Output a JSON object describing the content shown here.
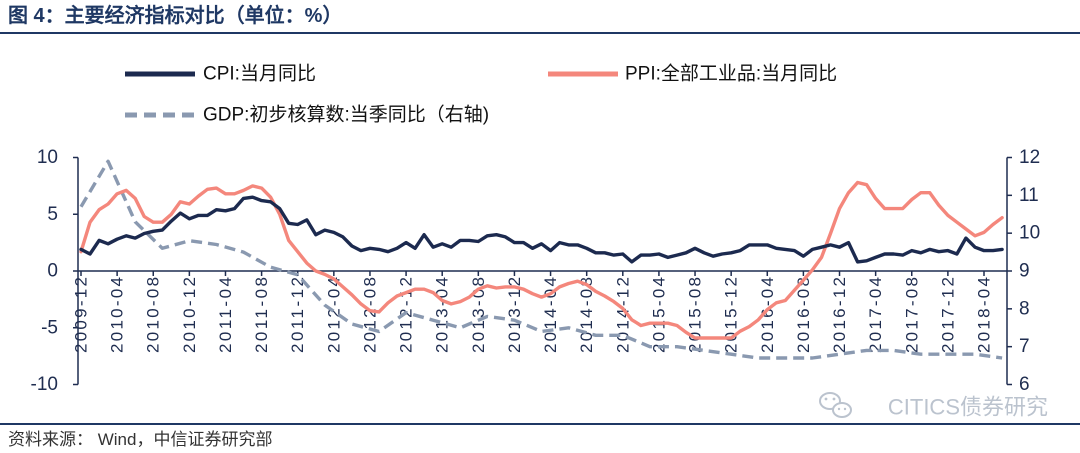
{
  "chart_data": {
    "type": "line",
    "title": "图 4：主要经济指标对比（单位：%）",
    "legend": "top",
    "grid": false,
    "x": [
      "2009-12",
      "2010-01",
      "2010-02",
      "2010-03",
      "2010-04",
      "2010-05",
      "2010-06",
      "2010-07",
      "2010-08",
      "2010-09",
      "2010-10",
      "2010-11",
      "2010-12",
      "2011-01",
      "2011-02",
      "2011-03",
      "2011-04",
      "2011-05",
      "2011-06",
      "2011-07",
      "2011-08",
      "2011-09",
      "2011-10",
      "2011-11",
      "2011-12",
      "2012-01",
      "2012-02",
      "2012-03",
      "2012-04",
      "2012-05",
      "2012-06",
      "2012-07",
      "2012-08",
      "2012-09",
      "2012-10",
      "2012-11",
      "2012-12",
      "2013-01",
      "2013-02",
      "2013-03",
      "2013-04",
      "2013-05",
      "2013-06",
      "2013-07",
      "2013-08",
      "2013-09",
      "2013-10",
      "2013-11",
      "2013-12",
      "2014-01",
      "2014-02",
      "2014-03",
      "2014-04",
      "2014-05",
      "2014-06",
      "2014-07",
      "2014-08",
      "2014-09",
      "2014-10",
      "2014-11",
      "2014-12",
      "2015-01",
      "2015-02",
      "2015-03",
      "2015-04",
      "2015-05",
      "2015-06",
      "2015-07",
      "2015-08",
      "2015-09",
      "2015-10",
      "2015-11",
      "2015-12",
      "2016-01",
      "2016-02",
      "2016-03",
      "2016-04",
      "2016-05",
      "2016-06",
      "2016-07",
      "2016-08",
      "2016-09",
      "2016-10",
      "2016-11",
      "2016-12",
      "2017-01",
      "2017-02",
      "2017-03",
      "2017-04",
      "2017-05",
      "2017-06",
      "2017-07",
      "2017-08",
      "2017-09",
      "2017-10",
      "2017-11",
      "2017-12",
      "2018-01",
      "2018-02",
      "2018-03",
      "2018-04",
      "2018-05",
      "2018-06"
    ],
    "x_tick_labels": [
      "2009-12",
      "2010-04",
      "2010-08",
      "2010-12",
      "2011-04",
      "2011-08",
      "2011-12",
      "2012-04",
      "2012-08",
      "2012-12",
      "2013-04",
      "2013-08",
      "2013-12",
      "2014-04",
      "2014-08",
      "2014-12",
      "2015-04",
      "2015-08",
      "2015-12",
      "2016-04",
      "2016-08",
      "2016-12",
      "2017-04",
      "2017-08",
      "2017-12",
      "2018-04"
    ],
    "y_left": {
      "lim": [
        -10,
        10
      ],
      "ticks": [
        10,
        5,
        0,
        -5,
        -10
      ]
    },
    "y_right": {
      "lim": [
        6,
        12
      ],
      "ticks": [
        12,
        11,
        10,
        9,
        8,
        7,
        6
      ]
    },
    "series": [
      {
        "name": "CPI:当月同比",
        "axis": "left",
        "style": "solid",
        "color": "#1c2a4f",
        "values": [
          1.9,
          1.5,
          2.7,
          2.4,
          2.8,
          3.1,
          2.9,
          3.3,
          3.5,
          3.6,
          4.4,
          5.1,
          4.6,
          4.9,
          4.9,
          5.4,
          5.3,
          5.5,
          6.4,
          6.5,
          6.2,
          6.1,
          5.5,
          4.2,
          4.1,
          4.5,
          3.2,
          3.6,
          3.4,
          3.0,
          2.2,
          1.8,
          2.0,
          1.9,
          1.7,
          2.0,
          2.5,
          2.0,
          3.2,
          2.1,
          2.4,
          2.1,
          2.7,
          2.7,
          2.6,
          3.1,
          3.2,
          3.0,
          2.5,
          2.5,
          2.0,
          2.4,
          1.8,
          2.5,
          2.3,
          2.3,
          2.0,
          1.6,
          1.6,
          1.4,
          1.5,
          0.8,
          1.4,
          1.4,
          1.5,
          1.2,
          1.4,
          1.6,
          2.0,
          1.6,
          1.3,
          1.5,
          1.6,
          1.8,
          2.3,
          2.3,
          2.3,
          2.0,
          1.9,
          1.8,
          1.3,
          1.9,
          2.1,
          2.3,
          2.1,
          2.5,
          0.8,
          0.9,
          1.2,
          1.5,
          1.5,
          1.4,
          1.8,
          1.6,
          1.9,
          1.7,
          1.8,
          1.5,
          2.9,
          2.1,
          1.8,
          1.8,
          1.9
        ]
      },
      {
        "name": "PPI:全部工业品:当月同比",
        "axis": "left",
        "style": "solid",
        "color": "#f4877c",
        "values": [
          1.7,
          4.3,
          5.4,
          5.9,
          6.8,
          7.1,
          6.4,
          4.8,
          4.3,
          4.3,
          5.0,
          6.1,
          5.9,
          6.6,
          7.2,
          7.3,
          6.8,
          6.8,
          7.1,
          7.5,
          7.3,
          6.5,
          5.0,
          2.7,
          1.7,
          0.7,
          0.0,
          -0.3,
          -0.7,
          -1.4,
          -2.1,
          -2.9,
          -3.5,
          -3.6,
          -2.8,
          -2.2,
          -1.9,
          -1.6,
          -1.6,
          -1.9,
          -2.6,
          -2.9,
          -2.7,
          -2.3,
          -1.6,
          -1.3,
          -1.5,
          -1.4,
          -1.4,
          -1.6,
          -2.0,
          -2.3,
          -2.0,
          -1.4,
          -1.1,
          -0.9,
          -1.2,
          -1.8,
          -2.2,
          -2.7,
          -3.3,
          -4.3,
          -4.8,
          -4.6,
          -4.6,
          -4.6,
          -4.8,
          -5.4,
          -5.9,
          -5.9,
          -5.9,
          -5.9,
          -5.9,
          -5.3,
          -4.9,
          -4.3,
          -3.4,
          -2.8,
          -2.6,
          -1.7,
          -0.8,
          0.1,
          1.2,
          3.3,
          5.5,
          6.9,
          7.8,
          7.6,
          6.4,
          5.5,
          5.5,
          5.5,
          6.3,
          6.9,
          6.9,
          5.8,
          4.9,
          4.3,
          3.7,
          3.1,
          3.4,
          4.1,
          4.7
        ]
      },
      {
        "name": "GDP:初步核算数:当季同比（右轴)",
        "axis": "right",
        "style": "dashed",
        "color": "#8a99b0",
        "x": [
          "2009-12",
          "2010-03",
          "2010-06",
          "2010-09",
          "2010-12",
          "2011-03",
          "2011-06",
          "2011-09",
          "2011-12",
          "2012-03",
          "2012-06",
          "2012-09",
          "2012-12",
          "2013-03",
          "2013-06",
          "2013-09",
          "2013-12",
          "2014-03",
          "2014-06",
          "2014-09",
          "2014-12",
          "2015-03",
          "2015-06",
          "2015-09",
          "2015-12",
          "2016-03",
          "2016-06",
          "2016-09",
          "2016-12",
          "2017-03",
          "2017-06",
          "2017-09",
          "2017-12",
          "2018-03",
          "2018-06"
        ],
        "values": [
          10.7,
          11.9,
          10.3,
          9.6,
          9.8,
          9.7,
          9.5,
          9.1,
          8.9,
          8.1,
          7.6,
          7.4,
          7.9,
          7.7,
          7.5,
          7.8,
          7.7,
          7.4,
          7.5,
          7.3,
          7.3,
          7.0,
          7.0,
          6.9,
          6.8,
          6.7,
          6.7,
          6.7,
          6.8,
          6.9,
          6.9,
          6.8,
          6.8,
          6.8,
          6.7
        ]
      }
    ]
  },
  "footer": {
    "source": "资料来源： Wind，中信证券研究部"
  },
  "watermark": {
    "text": "CITICS债券研究",
    "icon": "wechat-icon",
    "color": "#b8c0cc"
  },
  "colors": {
    "title": "#1f3864",
    "axis": "#1f2d50"
  }
}
